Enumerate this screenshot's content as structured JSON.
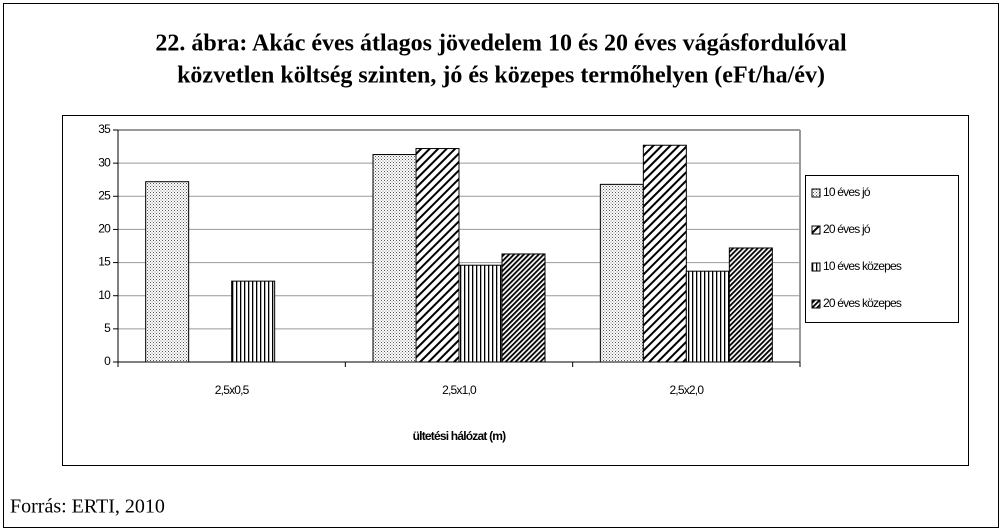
{
  "chart_data": {
    "type": "bar",
    "title": [
      "22. ábra: Akác éves átlagos jövedelem 10 és 20 éves vágásfordulóval",
      "közvetlen költség szinten, jó és közepes termőhelyen (eFt/ha/év)"
    ],
    "x_label": "ültetési hálózat (m)",
    "categories": [
      "2,5x0,5",
      "2,5x1,0",
      "2,5x2,0"
    ],
    "series": [
      {
        "name": "10 éves jó",
        "color": "#000000",
        "pattern": "dots",
        "values": [
          27.2,
          31.3,
          26.8
        ]
      },
      {
        "name": "20 éves jó",
        "color": "#000000",
        "pattern": "diagonal",
        "values": [
          null,
          32.2,
          32.7
        ]
      },
      {
        "name": "10 éves közepes",
        "color": "#000000",
        "pattern": "vertical",
        "values": [
          12.2,
          14.6,
          13.7
        ]
      },
      {
        "name": "20 éves közepes",
        "color": "#000000",
        "pattern": "dense-diagonal",
        "values": [
          null,
          16.3,
          17.2
        ]
      }
    ],
    "ylim": [
      0,
      35
    ],
    "yticks": [
      0,
      5,
      10,
      15,
      20,
      25,
      30,
      35
    ],
    "grid": true,
    "legend": "right"
  },
  "source": "Forrás: ERTI, 2010"
}
